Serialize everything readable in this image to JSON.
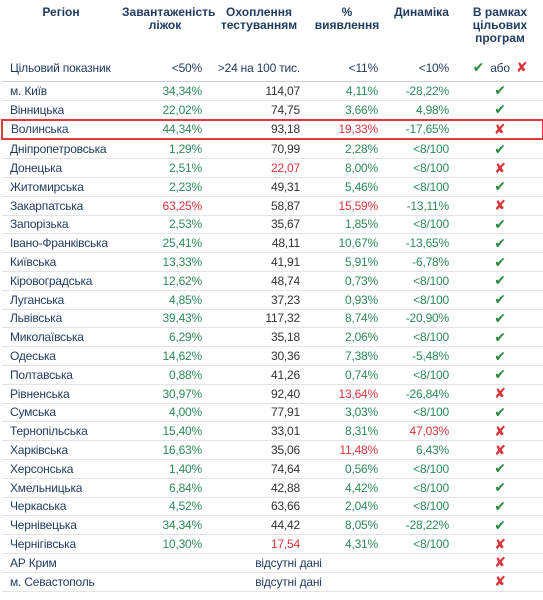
{
  "header": {
    "columns": [
      "Регіон",
      "Завантаженість ліжок",
      "Охоплення тестуванням",
      "% виявлення",
      "Динаміка",
      "В рамках цільових програм"
    ]
  },
  "target": {
    "label": "Цільовий показник",
    "values": [
      "<50%",
      ">24 на 100 тис.",
      "<11%",
      "<10%"
    ],
    "status": [
      "✔",
      "або",
      "✘"
    ]
  },
  "column_colors": [
    "#1f3a5f",
    "#2e8a5a",
    "#333333",
    "#2e8a5a",
    "#2e8a5a"
  ],
  "alert_color": "#d9343a",
  "status_colors": {
    "✔": "#2a8a3e",
    "✘": "#d9343a",
    "або": "#1f3a5f"
  },
  "highlighted_row": 2,
  "rows": [
    {
      "cells": [
        "м. Київ",
        "34,34%",
        "114,07",
        "4,11%",
        "-28,22%"
      ],
      "status": "✔",
      "alert": []
    },
    {
      "cells": [
        "Вінницька",
        "22,02%",
        "74,75",
        "3,66%",
        "4,98%"
      ],
      "status": "✔",
      "alert": []
    },
    {
      "cells": [
        "Волинська",
        "44,34%",
        "93,18",
        "19,33%",
        "-17,65%"
      ],
      "status": "✘",
      "alert": [
        3
      ]
    },
    {
      "cells": [
        "Дніпропетровська",
        "1,29%",
        "70,99",
        "2,28%",
        "<8/100"
      ],
      "status": "✔",
      "alert": []
    },
    {
      "cells": [
        "Донецька",
        "2,51%",
        "22,07",
        "8,00%",
        "<8/100"
      ],
      "status": "✘",
      "alert": [
        2
      ]
    },
    {
      "cells": [
        "Житомирська",
        "2,23%",
        "49,31",
        "5,46%",
        "<8/100"
      ],
      "status": "✔",
      "alert": []
    },
    {
      "cells": [
        "Закарпатська",
        "63,25%",
        "58,87",
        "15,59%",
        "-13,11%"
      ],
      "status": "✘",
      "alert": [
        1,
        3
      ]
    },
    {
      "cells": [
        "Запорізька",
        "2,53%",
        "35,67",
        "1,85%",
        "<8/100"
      ],
      "status": "✔",
      "alert": []
    },
    {
      "cells": [
        "Івано-Франківська",
        "25,41%",
        "48,11",
        "10,67%",
        "-13,65%"
      ],
      "status": "✔",
      "alert": []
    },
    {
      "cells": [
        "Київська",
        "13,33%",
        "41,91",
        "5,91%",
        "-6,78%"
      ],
      "status": "✔",
      "alert": []
    },
    {
      "cells": [
        "Кіровоградська",
        "12,62%",
        "48,74",
        "0,73%",
        "<8/100"
      ],
      "status": "✔",
      "alert": []
    },
    {
      "cells": [
        "Луганська",
        "4,85%",
        "37,23",
        "0,93%",
        "<8/100"
      ],
      "status": "✔",
      "alert": []
    },
    {
      "cells": [
        "Львівська",
        "39,43%",
        "117,32",
        "8,74%",
        "-20,90%"
      ],
      "status": "✔",
      "alert": []
    },
    {
      "cells": [
        "Миколаївська",
        "6,29%",
        "35,18",
        "2,06%",
        "<8/100"
      ],
      "status": "✔",
      "alert": []
    },
    {
      "cells": [
        "Одеська",
        "14,62%",
        "30,36",
        "7,38%",
        "-5,48%"
      ],
      "status": "✔",
      "alert": []
    },
    {
      "cells": [
        "Полтавська",
        "0,88%",
        "41,26",
        "0,74%",
        "<8/100"
      ],
      "status": "✔",
      "alert": []
    },
    {
      "cells": [
        "Рівненська",
        "30,97%",
        "92,40",
        "13,64%",
        "-26,84%"
      ],
      "status": "✘",
      "alert": [
        3
      ]
    },
    {
      "cells": [
        "Сумська",
        "4,00%",
        "77,91",
        "3,03%",
        "<8/100"
      ],
      "status": "✔",
      "alert": []
    },
    {
      "cells": [
        "Тернопільська",
        "15,40%",
        "33,01",
        "8,31%",
        "47,03%"
      ],
      "status": "✘",
      "alert": [
        4
      ]
    },
    {
      "cells": [
        "Харківська",
        "16,63%",
        "35,06",
        "11,48%",
        "6,43%"
      ],
      "status": "✘",
      "alert": [
        3
      ]
    },
    {
      "cells": [
        "Херсонська",
        "1,40%",
        "74,64",
        "0,56%",
        "<8/100"
      ],
      "status": "✔",
      "alert": []
    },
    {
      "cells": [
        "Хмельницька",
        "6,84%",
        "42,88",
        "4,42%",
        "<8/100"
      ],
      "status": "✔",
      "alert": []
    },
    {
      "cells": [
        "Черкаська",
        "4,52%",
        "63,66",
        "2,04%",
        "<8/100"
      ],
      "status": "✔",
      "alert": []
    },
    {
      "cells": [
        "Чернівецька",
        "34,34%",
        "44,42",
        "8,05%",
        "-28,22%"
      ],
      "status": "✔",
      "alert": []
    },
    {
      "cells": [
        "Чернігівська",
        "10,30%",
        "17,54",
        "4,31%",
        "<8/100"
      ],
      "status": "✘",
      "alert": [
        2
      ]
    },
    {
      "cells": [
        "АР Крим",
        "відсутні дані"
      ],
      "status": "✘",
      "alert": []
    },
    {
      "cells": [
        "м. Севастополь",
        "відсутні дані"
      ],
      "status": "✘",
      "alert": []
    }
  ]
}
